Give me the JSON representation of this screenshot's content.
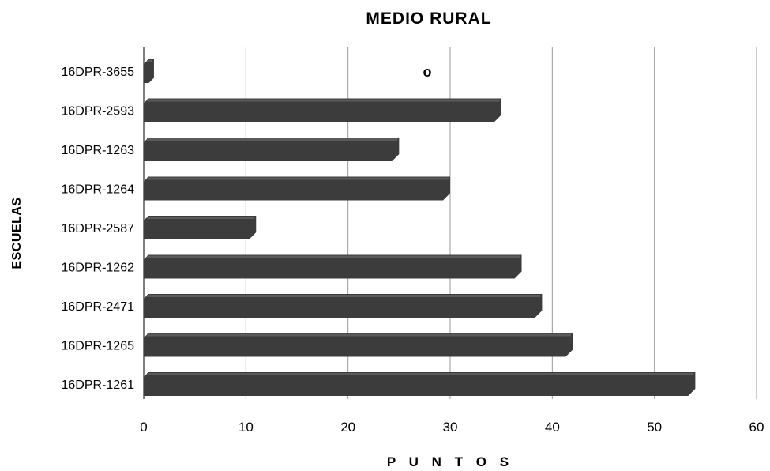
{
  "chart_data": {
    "type": "bar",
    "orientation": "horizontal",
    "title": "MEDIO RURAL",
    "xlabel": "P U N T O S",
    "ylabel": "ESCUELAS",
    "categories": [
      "16DPR-3655",
      "16DPR-2593",
      "16DPR-1263",
      "16DPR-1264",
      "16DPR-2587",
      "16DPR-1262",
      "16DPR-2471",
      "16DPR-1265",
      "16DPR-1261"
    ],
    "values": [
      1,
      35,
      25,
      30,
      11,
      37,
      39,
      42,
      54
    ],
    "xlim": [
      0,
      60
    ],
    "xticks": [
      "0",
      "10",
      "20",
      "30",
      "40",
      "50",
      "60"
    ],
    "grid": true,
    "annotation": "o",
    "colors": {
      "bar": "#3c3c3c",
      "bar_top": "#5a5a5a",
      "grid": "#9a9a9a",
      "axis": "#555555"
    }
  }
}
